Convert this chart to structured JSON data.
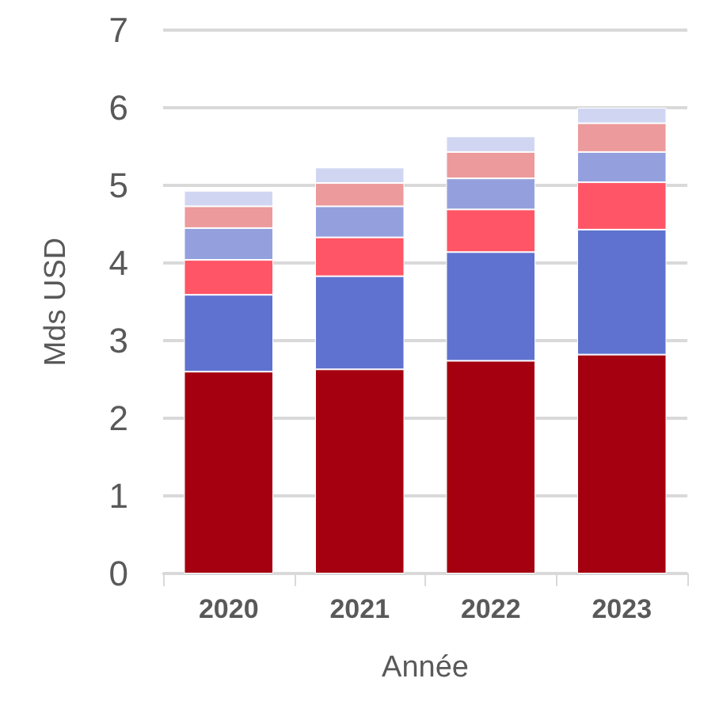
{
  "chart_data": {
    "type": "bar",
    "stacked": true,
    "xlabel": "Année",
    "ylabel": "Mds USD",
    "categories": [
      "2020",
      "2021",
      "2022",
      "2023"
    ],
    "series": [
      {
        "color": "#a50010",
        "values": [
          2.6,
          2.63,
          2.74,
          2.82
        ]
      },
      {
        "color": "#5f72cf",
        "values": [
          0.99,
          1.2,
          1.4,
          1.61
        ]
      },
      {
        "color": "#ff5566",
        "values": [
          0.45,
          0.5,
          0.55,
          0.61
        ]
      },
      {
        "color": "#94a0de",
        "values": [
          0.41,
          0.4,
          0.4,
          0.39
        ]
      },
      {
        "color": "#ec9a9c",
        "values": [
          0.28,
          0.3,
          0.34,
          0.37
        ]
      },
      {
        "color": "#d0d6f2",
        "values": [
          0.2,
          0.2,
          0.2,
          0.2
        ]
      }
    ],
    "ylim": [
      0,
      7
    ],
    "yticks": [
      0,
      1,
      2,
      3,
      4,
      5,
      6,
      7
    ],
    "grid": "y"
  }
}
